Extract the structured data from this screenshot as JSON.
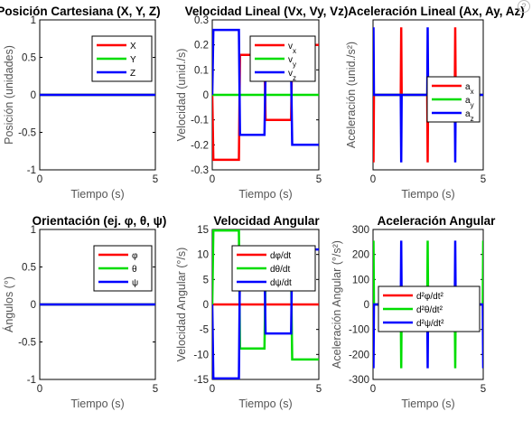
{
  "colors": {
    "x": "#ff0000",
    "y": "#00dd00",
    "z": "#0000ff",
    "axis": "#000000"
  },
  "help_label": "?",
  "chart_data": [
    {
      "id": "pos",
      "type": "line",
      "title": "Posición Cartesiana (X, Y, Z)",
      "xlabel": "Tiempo (s)",
      "ylabel": "Posición (unidades)",
      "xlim": [
        0,
        5
      ],
      "ylim": [
        -1,
        1
      ],
      "xticks": [
        0,
        5
      ],
      "yticks": [
        -1,
        -0.5,
        0,
        0.5,
        1
      ],
      "yticklabels": [
        "-1",
        "-0.5",
        "0",
        "0.5",
        "1"
      ],
      "legend": "top-right",
      "series": [
        {
          "name": "X",
          "color": "x",
          "points": [
            [
              0,
              0
            ],
            [
              5,
              0
            ]
          ]
        },
        {
          "name": "Y",
          "color": "y",
          "points": [
            [
              0,
              0
            ],
            [
              5,
              0
            ]
          ]
        },
        {
          "name": "Z",
          "color": "z",
          "points": [
            [
              0,
              0
            ],
            [
              5,
              0
            ]
          ]
        }
      ]
    },
    {
      "id": "vel",
      "type": "line",
      "title": "Velocidad Lineal (Vx, Vy, Vz)",
      "xlabel": "Tiempo (s)",
      "ylabel": "Velocidad (unid./s)",
      "xlim": [
        0,
        5
      ],
      "ylim": [
        -0.3,
        0.3
      ],
      "xticks": [
        0,
        5
      ],
      "yticks": [
        -0.3,
        -0.2,
        -0.1,
        0,
        0.1,
        0.2,
        0.3
      ],
      "yticklabels": [
        "-0.3",
        "-0.2",
        "-0.1",
        "0",
        "0.1",
        "0.2",
        "0.3"
      ],
      "legend": "top-right",
      "series": [
        {
          "name": "vx",
          "color": "x",
          "points": [
            [
              0,
              0
            ],
            [
              0.05,
              -0.26
            ],
            [
              1.25,
              -0.26
            ],
            [
              1.3,
              0.16
            ],
            [
              2.45,
              0.16
            ],
            [
              2.5,
              -0.1
            ],
            [
              3.7,
              -0.1
            ],
            [
              3.75,
              0.2
            ],
            [
              5,
              0.2
            ]
          ]
        },
        {
          "name": "vy",
          "color": "y",
          "points": [
            [
              0,
              0
            ],
            [
              5,
              0
            ]
          ]
        },
        {
          "name": "vz",
          "color": "z",
          "points": [
            [
              0,
              0
            ],
            [
              0.05,
              0.26
            ],
            [
              1.25,
              0.26
            ],
            [
              1.3,
              -0.16
            ],
            [
              2.45,
              -0.16
            ],
            [
              2.5,
              0.1
            ],
            [
              3.7,
              0.1
            ],
            [
              3.75,
              -0.2
            ],
            [
              5,
              -0.2
            ]
          ]
        }
      ]
    },
    {
      "id": "acc",
      "type": "line",
      "title": "Aceleración Lineal (Ax, Ay, Az)",
      "xlabel": "Tiempo (s)",
      "ylabel": "Aceleración (unid./s²)",
      "xlim": [
        0,
        5
      ],
      "ylim": [
        -5,
        5
      ],
      "xticks": [
        0,
        5
      ],
      "yticks": [],
      "yticklabels": [],
      "legend": "center-right",
      "series": [
        {
          "name": "ax",
          "color": "x",
          "points": [
            [
              0,
              0
            ],
            [
              0.02,
              -4.5
            ],
            [
              0.04,
              0
            ],
            [
              1.26,
              0
            ],
            [
              1.28,
              4.5
            ],
            [
              1.3,
              0
            ],
            [
              2.46,
              0
            ],
            [
              2.48,
              -4.5
            ],
            [
              2.5,
              0
            ],
            [
              3.71,
              0
            ],
            [
              3.73,
              4.5
            ],
            [
              3.75,
              0
            ],
            [
              5,
              0
            ]
          ]
        },
        {
          "name": "ay",
          "color": "y",
          "points": [
            [
              0,
              0
            ],
            [
              5,
              0
            ]
          ]
        },
        {
          "name": "az",
          "color": "z",
          "points": [
            [
              0,
              0
            ],
            [
              0.02,
              4.5
            ],
            [
              0.04,
              0
            ],
            [
              1.26,
              0
            ],
            [
              1.28,
              -4.5
            ],
            [
              1.3,
              0
            ],
            [
              2.46,
              0
            ],
            [
              2.48,
              4.5
            ],
            [
              2.5,
              0
            ],
            [
              3.71,
              0
            ],
            [
              3.73,
              -4.5
            ],
            [
              3.75,
              0
            ],
            [
              5,
              0
            ]
          ]
        }
      ]
    },
    {
      "id": "ori",
      "type": "line",
      "title": "Orientación (ej. φ, θ, ψ)",
      "xlabel": "Tiempo (s)",
      "ylabel": "Ángulos (°)",
      "xlim": [
        0,
        5
      ],
      "ylim": [
        -1,
        1
      ],
      "xticks": [
        0,
        5
      ],
      "yticks": [
        -1,
        -0.5,
        0,
        0.5,
        1
      ],
      "yticklabels": [
        "-1",
        "-0.5",
        "0",
        "0.5",
        "1"
      ],
      "legend": "top-right",
      "series": [
        {
          "name": "φ",
          "color": "x",
          "points": [
            [
              0,
              0
            ],
            [
              5,
              0
            ]
          ]
        },
        {
          "name": "θ",
          "color": "y",
          "points": [
            [
              0,
              0
            ],
            [
              5,
              0
            ]
          ]
        },
        {
          "name": "ψ",
          "color": "z",
          "points": [
            [
              0,
              0
            ],
            [
              5,
              0
            ]
          ]
        }
      ]
    },
    {
      "id": "angvel",
      "type": "line",
      "title": "Velocidad Angular",
      "xlabel": "Tiempo (s)",
      "ylabel": "Velocidad Angular (°/s)",
      "xlim": [
        0,
        5
      ],
      "ylim": [
        -15,
        15
      ],
      "xticks": [
        0,
        5
      ],
      "yticks": [
        -15,
        -10,
        -5,
        0,
        5,
        10,
        15
      ],
      "yticklabels": [
        "-15",
        "-10",
        "-5",
        "0",
        "5",
        "10",
        "15"
      ],
      "legend": "top-right",
      "series": [
        {
          "name": "dφ/dt",
          "color": "x",
          "points": [
            [
              0,
              0
            ],
            [
              5,
              0
            ]
          ]
        },
        {
          "name": "dθ/dt",
          "color": "y",
          "points": [
            [
              0,
              0
            ],
            [
              0.05,
              14.8
            ],
            [
              1.25,
              14.8
            ],
            [
              1.3,
              -8.8
            ],
            [
              2.45,
              -8.8
            ],
            [
              2.5,
              5.8
            ],
            [
              3.7,
              5.8
            ],
            [
              3.75,
              -11
            ],
            [
              5,
              -11
            ]
          ]
        },
        {
          "name": "dψ/dt",
          "color": "z",
          "points": [
            [
              0,
              0
            ],
            [
              0.05,
              -14.8
            ],
            [
              1.25,
              -14.8
            ],
            [
              1.3,
              8.8
            ],
            [
              2.45,
              8.8
            ],
            [
              2.5,
              -5.8
            ],
            [
              3.7,
              -5.8
            ],
            [
              3.75,
              11
            ],
            [
              5,
              11
            ]
          ]
        }
      ]
    },
    {
      "id": "angacc",
      "type": "line",
      "title": "Aceleración Angular",
      "xlabel": "Tiempo (s)",
      "ylabel": "Aceleración Angular (°/s²)",
      "xlim": [
        0,
        5
      ],
      "ylim": [
        -300,
        300
      ],
      "xticks": [
        0,
        5
      ],
      "yticks": [
        -300,
        -200,
        -100,
        0,
        100,
        200,
        300
      ],
      "yticklabels": [
        "-300",
        "-200",
        "-100",
        "0",
        "100",
        "200",
        "300"
      ],
      "legend": "center-right",
      "series": [
        {
          "name": "d²φ/dt²",
          "color": "x",
          "points": [
            [
              0,
              0
            ],
            [
              5,
              0
            ]
          ]
        },
        {
          "name": "d²θ/dt²",
          "color": "y",
          "points": [
            [
              0,
              0
            ],
            [
              0.02,
              255
            ],
            [
              0.04,
              0
            ],
            [
              1.26,
              0
            ],
            [
              1.28,
              -255
            ],
            [
              1.3,
              0
            ],
            [
              2.46,
              0
            ],
            [
              2.48,
              255
            ],
            [
              2.5,
              0
            ],
            [
              3.71,
              0
            ],
            [
              3.73,
              -255
            ],
            [
              3.75,
              0
            ],
            [
              4.98,
              0
            ],
            [
              5,
              255
            ]
          ]
        },
        {
          "name": "d²ψ/dt²",
          "color": "z",
          "points": [
            [
              0,
              0
            ],
            [
              0.02,
              -255
            ],
            [
              0.04,
              0
            ],
            [
              1.26,
              0
            ],
            [
              1.28,
              255
            ],
            [
              1.3,
              0
            ],
            [
              2.46,
              0
            ],
            [
              2.48,
              -255
            ],
            [
              2.5,
              0
            ],
            [
              3.71,
              0
            ],
            [
              3.73,
              255
            ],
            [
              3.75,
              0
            ],
            [
              4.98,
              0
            ],
            [
              5,
              -255
            ]
          ]
        }
      ]
    }
  ]
}
